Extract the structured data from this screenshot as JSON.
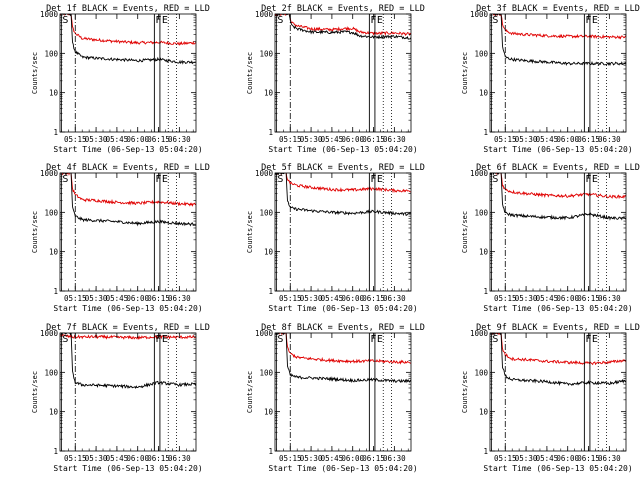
{
  "chart_data": [
    {
      "type": "line",
      "title": "Det 1f BLACK = Events, RED = LLD",
      "xlabel": "Start Time (06-Sep-13 05:04:20)",
      "ylabel": "Counts/sec",
      "yscale": "log",
      "ylim": [
        1,
        1000
      ],
      "xlim": [
        "05:04",
        "06:42"
      ],
      "xticks": [
        "05:15",
        "05:30",
        "05:45",
        "06:00",
        "06:15",
        "06:30"
      ],
      "yticks": [
        "1",
        "10",
        "100",
        "1000"
      ],
      "markers": {
        "S": "05:05",
        "F": "06:12",
        "E": "06:16"
      },
      "series": [
        {
          "name": "RED = LLD",
          "color": "#e00000",
          "x": [
            "05:04",
            "05:07",
            "05:10",
            "05:12",
            "05:13",
            "05:15",
            "05:20",
            "05:30",
            "05:45",
            "06:00",
            "06:15",
            "06:30",
            "06:40"
          ],
          "values": [
            1000,
            1000,
            1000,
            1000,
            450,
            320,
            240,
            220,
            200,
            185,
            190,
            175,
            185
          ]
        },
        {
          "name": "BLACK = Events",
          "color": "#000000",
          "x": [
            "05:04",
            "05:07",
            "05:10",
            "05:12",
            "05:13",
            "05:15",
            "05:20",
            "05:30",
            "05:45",
            "06:00",
            "06:15",
            "06:30",
            "06:40"
          ],
          "values": [
            1000,
            1000,
            1000,
            1000,
            180,
            110,
            80,
            75,
            70,
            65,
            70,
            60,
            60
          ]
        }
      ]
    },
    {
      "type": "line",
      "title": "Det 2f BLACK = Events, RED = LLD",
      "xlabel": "Start Time (06-Sep-13 05:04:20)",
      "ylabel": "Counts/sec",
      "yscale": "log",
      "ylim": [
        1,
        1000
      ],
      "xlim": [
        "05:04",
        "06:42"
      ],
      "xticks": [
        "05:15",
        "05:30",
        "05:45",
        "06:00",
        "06:15",
        "06:30"
      ],
      "yticks": [
        "1",
        "10",
        "100",
        "1000"
      ],
      "markers": {
        "S": "05:05",
        "F": "06:12",
        "E": "06:16"
      },
      "series": [
        {
          "name": "RED = LLD",
          "color": "#e00000",
          "x": [
            "05:04",
            "05:10",
            "05:14",
            "05:16",
            "05:20",
            "05:30",
            "05:45",
            "05:55",
            "06:00",
            "06:05",
            "06:15",
            "06:30",
            "06:40"
          ],
          "values": [
            1000,
            1000,
            1000,
            600,
            500,
            420,
            400,
            430,
            430,
            350,
            320,
            330,
            310
          ]
        },
        {
          "name": "BLACK = Events",
          "color": "#000000",
          "x": [
            "05:04",
            "05:10",
            "05:14",
            "05:16",
            "05:20",
            "05:30",
            "05:45",
            "05:55",
            "06:00",
            "06:05",
            "06:15",
            "06:30",
            "06:40"
          ],
          "values": [
            1000,
            1000,
            1000,
            500,
            420,
            350,
            340,
            350,
            340,
            280,
            260,
            270,
            250
          ]
        }
      ]
    },
    {
      "type": "line",
      "title": "Det 3f BLACK = Events, RED = LLD",
      "xlabel": "Start Time (06-Sep-13 05:04:20)",
      "ylabel": "Counts/sec",
      "yscale": "log",
      "ylim": [
        1,
        1000
      ],
      "xlim": [
        "05:04",
        "06:42"
      ],
      "xticks": [
        "05:15",
        "05:30",
        "05:45",
        "06:00",
        "06:15",
        "06:30"
      ],
      "yticks": [
        "1",
        "10",
        "100",
        "1000"
      ],
      "markers": {
        "S": "05:05",
        "F": "06:12",
        "E": "06:16"
      },
      "series": [
        {
          "name": "RED = LLD",
          "color": "#e00000",
          "x": [
            "05:04",
            "05:07",
            "05:10",
            "05:12",
            "05:13",
            "05:15",
            "05:20",
            "05:30",
            "05:45",
            "06:00",
            "06:15",
            "06:30",
            "06:40"
          ],
          "values": [
            1000,
            1000,
            1000,
            1000,
            550,
            380,
            320,
            300,
            280,
            270,
            270,
            260,
            260
          ]
        },
        {
          "name": "BLACK = Events",
          "color": "#000000",
          "x": [
            "05:04",
            "05:07",
            "05:10",
            "05:12",
            "05:13",
            "05:15",
            "05:20",
            "05:30",
            "05:45",
            "06:00",
            "06:15",
            "06:30",
            "06:40"
          ],
          "values": [
            1000,
            1000,
            1000,
            1000,
            150,
            80,
            70,
            65,
            60,
            55,
            55,
            55,
            55
          ]
        }
      ]
    },
    {
      "type": "line",
      "title": "Det 4f BLACK = Events, RED = LLD",
      "xlabel": "Start Time (06-Sep-13 05:04:20)",
      "ylabel": "Counts/sec",
      "yscale": "log",
      "ylim": [
        1,
        1000
      ],
      "xlim": [
        "05:04",
        "06:42"
      ],
      "xticks": [
        "05:15",
        "05:30",
        "05:45",
        "06:00",
        "06:15",
        "06:30"
      ],
      "yticks": [
        "1",
        "10",
        "100",
        "1000"
      ],
      "markers": {
        "S": "05:05",
        "F": "06:12",
        "E": "06:16"
      },
      "series": [
        {
          "name": "RED = LLD",
          "color": "#e00000",
          "x": [
            "05:04",
            "05:07",
            "05:10",
            "05:12",
            "05:13",
            "05:15",
            "05:20",
            "05:30",
            "05:45",
            "06:00",
            "06:15",
            "06:30",
            "06:40"
          ],
          "values": [
            1000,
            1000,
            1000,
            1000,
            400,
            280,
            210,
            200,
            180,
            170,
            185,
            165,
            160
          ]
        },
        {
          "name": "BLACK = Events",
          "color": "#000000",
          "x": [
            "05:04",
            "05:07",
            "05:10",
            "05:12",
            "05:13",
            "05:15",
            "05:20",
            "05:30",
            "05:45",
            "06:00",
            "06:15",
            "06:30",
            "06:40"
          ],
          "values": [
            1000,
            1000,
            1000,
            1000,
            130,
            80,
            65,
            62,
            58,
            52,
            58,
            52,
            50
          ]
        }
      ]
    },
    {
      "type": "line",
      "title": "Det 5f BLACK = Events, RED = LLD",
      "xlabel": "Start Time (06-Sep-13 05:04:20)",
      "ylabel": "Counts/sec",
      "yscale": "log",
      "ylim": [
        1,
        1000
      ],
      "xlim": [
        "05:04",
        "06:42"
      ],
      "xticks": [
        "05:15",
        "05:30",
        "05:45",
        "06:00",
        "06:15",
        "06:30"
      ],
      "yticks": [
        "1",
        "10",
        "100",
        "1000"
      ],
      "markers": {
        "S": "05:05",
        "F": "06:12",
        "E": "06:16"
      },
      "series": [
        {
          "name": "RED = LLD",
          "color": "#e00000",
          "x": [
            "05:04",
            "05:07",
            "05:10",
            "05:12",
            "05:13",
            "05:15",
            "05:20",
            "05:30",
            "05:45",
            "06:00",
            "06:15",
            "06:30",
            "06:40"
          ],
          "values": [
            1000,
            1000,
            1000,
            1000,
            700,
            550,
            480,
            430,
            380,
            370,
            400,
            360,
            350
          ]
        },
        {
          "name": "BLACK = Events",
          "color": "#000000",
          "x": [
            "05:04",
            "05:07",
            "05:10",
            "05:12",
            "05:13",
            "05:15",
            "05:20",
            "05:30",
            "05:45",
            "06:00",
            "06:15",
            "06:30",
            "06:40"
          ],
          "values": [
            1000,
            1000,
            1000,
            1000,
            200,
            130,
            120,
            110,
            100,
            95,
            105,
            95,
            90
          ]
        }
      ]
    },
    {
      "type": "line",
      "title": "Det 6f BLACK = Events, RED = LLD",
      "xlabel": "Start Time (06-Sep-13 05:04:20)",
      "ylabel": "Counts/sec",
      "yscale": "log",
      "ylim": [
        1,
        1000
      ],
      "xlim": [
        "05:04",
        "06:42"
      ],
      "xticks": [
        "05:15",
        "05:30",
        "05:45",
        "06:00",
        "06:15",
        "06:30"
      ],
      "yticks": [
        "1",
        "10",
        "100",
        "1000"
      ],
      "markers": {
        "S": "05:05",
        "F": "06:12",
        "E": "06:16"
      },
      "series": [
        {
          "name": "RED = LLD",
          "color": "#e00000",
          "x": [
            "05:04",
            "05:07",
            "05:10",
            "05:12",
            "05:13",
            "05:15",
            "05:20",
            "05:30",
            "05:45",
            "06:00",
            "06:15",
            "06:30",
            "06:40"
          ],
          "values": [
            1000,
            1000,
            1000,
            1000,
            500,
            380,
            330,
            300,
            270,
            260,
            290,
            250,
            250
          ]
        },
        {
          "name": "BLACK = Events",
          "color": "#000000",
          "x": [
            "05:04",
            "05:07",
            "05:10",
            "05:12",
            "05:13",
            "05:15",
            "05:20",
            "05:30",
            "05:45",
            "06:00",
            "06:15",
            "06:30",
            "06:40"
          ],
          "values": [
            1000,
            1000,
            1000,
            1000,
            160,
            95,
            85,
            80,
            75,
            72,
            90,
            72,
            70
          ]
        }
      ]
    },
    {
      "type": "line",
      "title": "Det 7f BLACK = Events, RED = LLD",
      "xlabel": "Start Time (06-Sep-13 05:04:20)",
      "ylabel": "Counts/sec",
      "yscale": "log",
      "ylim": [
        1,
        1000
      ],
      "xlim": [
        "05:04",
        "06:42"
      ],
      "xticks": [
        "05:15",
        "05:30",
        "05:45",
        "06:00",
        "06:15",
        "06:30"
      ],
      "yticks": [
        "1",
        "10",
        "100",
        "1000"
      ],
      "markers": {
        "S": "05:05",
        "F": "06:12",
        "E": "06:16"
      },
      "series": [
        {
          "name": "RED = LLD",
          "color": "#e00000",
          "x": [
            "05:04",
            "05:07",
            "05:10",
            "05:12",
            "05:13",
            "05:15",
            "05:20",
            "05:30",
            "05:45",
            "06:00",
            "06:15",
            "06:30",
            "06:40"
          ],
          "values": [
            900,
            850,
            820,
            800,
            780,
            800,
            790,
            800,
            780,
            760,
            800,
            780,
            790
          ]
        },
        {
          "name": "BLACK = Events",
          "color": "#000000",
          "x": [
            "05:04",
            "05:07",
            "05:10",
            "05:12",
            "05:13",
            "05:15",
            "05:20",
            "05:30",
            "05:45",
            "06:00",
            "06:15",
            "06:30",
            "06:40"
          ],
          "values": [
            1000,
            1000,
            1000,
            1000,
            100,
            55,
            48,
            47,
            45,
            42,
            55,
            48,
            50
          ]
        }
      ]
    },
    {
      "type": "line",
      "title": "Det 8f BLACK = Events, RED = LLD",
      "xlabel": "Start Time (06-Sep-13 05:04:20)",
      "ylabel": "Counts/sec",
      "yscale": "log",
      "ylim": [
        1,
        1000
      ],
      "xlim": [
        "05:04",
        "06:42"
      ],
      "xticks": [
        "05:15",
        "05:30",
        "05:45",
        "06:00",
        "06:15",
        "06:30"
      ],
      "yticks": [
        "1",
        "10",
        "100",
        "1000"
      ],
      "markers": {
        "S": "05:05",
        "F": "06:12",
        "E": "06:16"
      },
      "series": [
        {
          "name": "RED = LLD",
          "color": "#e00000",
          "x": [
            "05:04",
            "05:07",
            "05:10",
            "05:12",
            "05:13",
            "05:15",
            "05:20",
            "05:30",
            "05:45",
            "06:00",
            "06:15",
            "06:30",
            "06:40"
          ],
          "values": [
            1000,
            1000,
            1000,
            1000,
            420,
            300,
            240,
            220,
            200,
            190,
            195,
            185,
            180
          ]
        },
        {
          "name": "BLACK = Events",
          "color": "#000000",
          "x": [
            "05:04",
            "05:07",
            "05:10",
            "05:12",
            "05:13",
            "05:15",
            "05:20",
            "05:30",
            "05:45",
            "06:00",
            "06:15",
            "06:30",
            "06:40"
          ],
          "values": [
            1000,
            1000,
            1000,
            1000,
            140,
            85,
            75,
            72,
            68,
            62,
            65,
            60,
            60
          ]
        }
      ]
    },
    {
      "type": "line",
      "title": "Det 9f BLACK = Events, RED = LLD",
      "xlabel": "Start Time (06-Sep-13 05:04:20)",
      "ylabel": "Counts/sec",
      "yscale": "log",
      "ylim": [
        1,
        1000
      ],
      "xlim": [
        "05:04",
        "06:42"
      ],
      "xticks": [
        "05:15",
        "05:30",
        "05:45",
        "06:00",
        "06:15",
        "06:30"
      ],
      "yticks": [
        "1",
        "10",
        "100",
        "1000"
      ],
      "markers": {
        "S": "05:05",
        "F": "06:12",
        "E": "06:16"
      },
      "series": [
        {
          "name": "RED = LLD",
          "color": "#e00000",
          "x": [
            "05:04",
            "05:07",
            "05:10",
            "05:12",
            "05:13",
            "05:15",
            "05:20",
            "05:30",
            "05:45",
            "06:00",
            "06:15",
            "06:30",
            "06:40"
          ],
          "values": [
            1000,
            1000,
            1000,
            1000,
            400,
            280,
            220,
            210,
            190,
            180,
            170,
            180,
            200
          ]
        },
        {
          "name": "BLACK = Events",
          "color": "#000000",
          "x": [
            "05:04",
            "05:07",
            "05:10",
            "05:12",
            "05:13",
            "05:15",
            "05:20",
            "05:30",
            "05:45",
            "06:00",
            "06:15",
            "06:30",
            "06:40"
          ],
          "values": [
            1000,
            1000,
            1000,
            1000,
            140,
            80,
            65,
            62,
            58,
            50,
            55,
            52,
            60
          ]
        }
      ]
    }
  ]
}
